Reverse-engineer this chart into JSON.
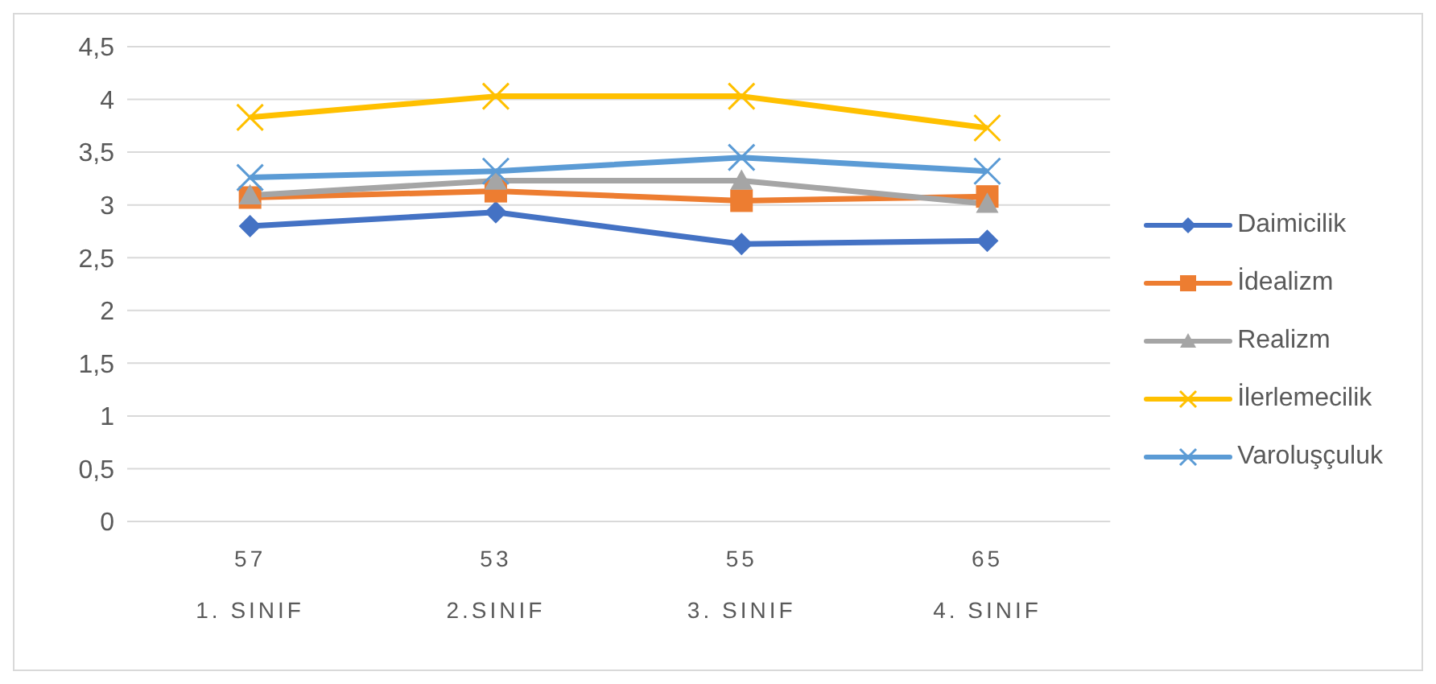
{
  "chart_data": {
    "type": "line",
    "categories": [
      "57\n1. SINIF",
      "53\n2.SINIF",
      "55\n3. SINIF",
      "65\n4. SINIF"
    ],
    "series": [
      {
        "name": "Daimicilik",
        "color": "#4472c4",
        "marker": "diamond",
        "values": [
          2.8,
          2.93,
          2.63,
          2.66
        ]
      },
      {
        "name": "İdealizm",
        "color": "#ed7d31",
        "marker": "square",
        "values": [
          3.07,
          3.13,
          3.04,
          3.08
        ]
      },
      {
        "name": "Realizm",
        "color": "#a5a5a5",
        "marker": "triangle",
        "values": [
          3.09,
          3.23,
          3.23,
          3.01
        ]
      },
      {
        "name": "İlerlemecilik",
        "color": "#ffc000",
        "marker": "cross",
        "values": [
          3.83,
          4.03,
          4.03,
          3.73
        ]
      },
      {
        "name": "Varoluşçuluk",
        "color": "#5b9bd5",
        "marker": "cross",
        "values": [
          3.26,
          3.32,
          3.45,
          3.32
        ]
      }
    ],
    "ylim": [
      0,
      4.5
    ],
    "yticks": [
      0,
      {
        "value": 0.5,
        "label": "0,5"
      },
      1,
      {
        "value": 1.5,
        "label": "1,5"
      },
      2,
      {
        "value": 2.5,
        "label": "2,5"
      },
      3,
      {
        "value": 3.5,
        "label": "3,5"
      },
      4,
      {
        "value": 4.5,
        "label": "4,5"
      }
    ],
    "grid": "y",
    "legend": "right",
    "line_style": "solid"
  }
}
